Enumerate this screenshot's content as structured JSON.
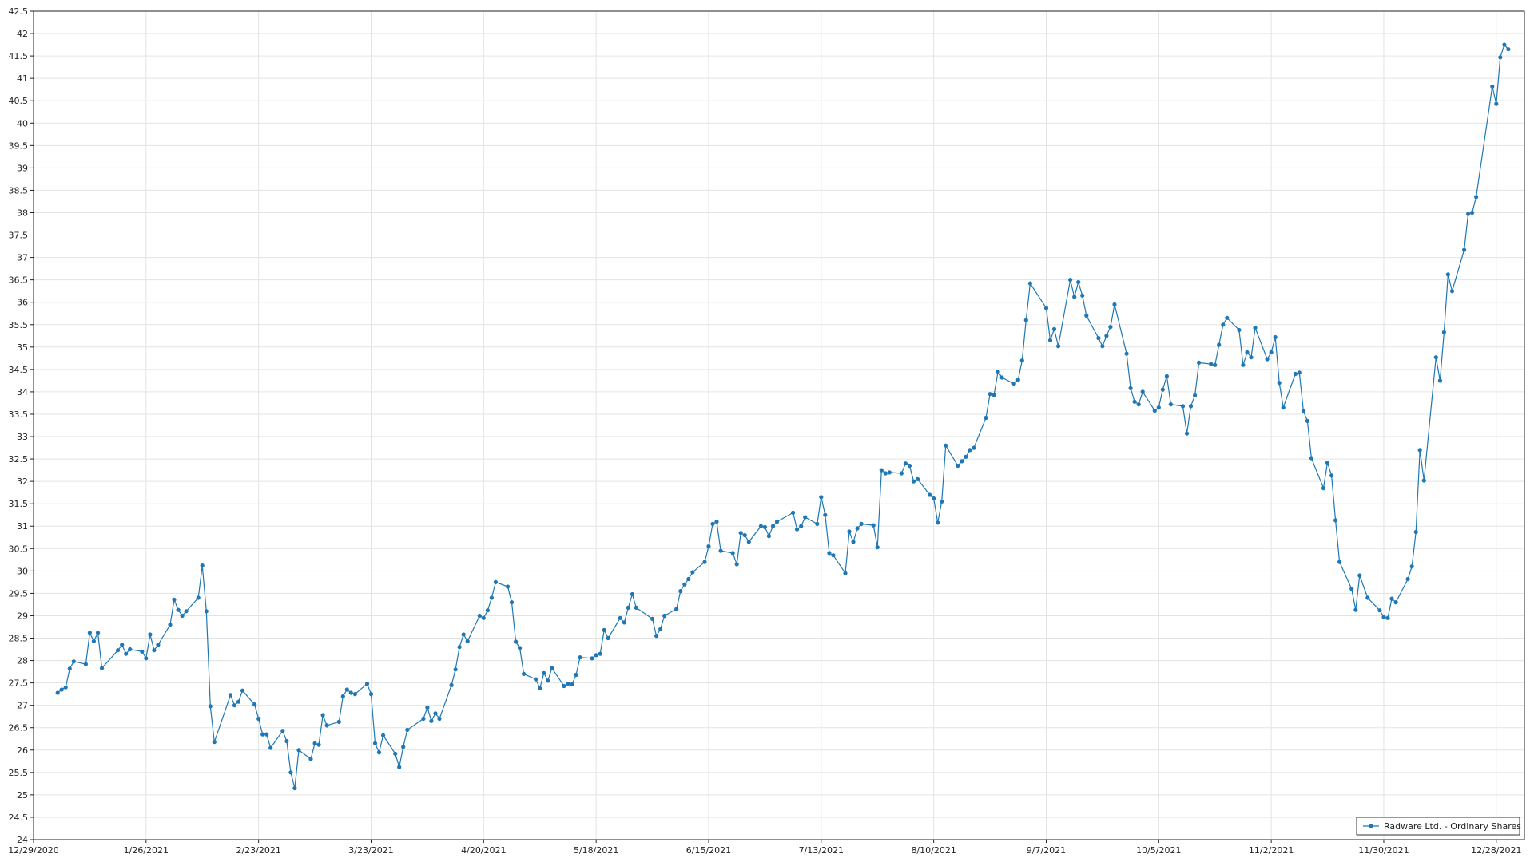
{
  "chart_data": {
    "type": "line",
    "title": "",
    "xlabel": "",
    "ylabel": "",
    "ylim": [
      24,
      42.5
    ],
    "xlim": [
      "2020-12-29",
      "2022-01-04"
    ],
    "y_ticks": [
      24,
      24.5,
      25,
      25.5,
      26,
      26.5,
      27,
      27.5,
      28,
      28.5,
      29,
      29.5,
      30,
      30.5,
      31,
      31.5,
      32,
      32.5,
      33,
      33.5,
      34,
      34.5,
      35,
      35.5,
      36,
      36.5,
      37,
      37.5,
      38,
      38.5,
      39,
      39.5,
      40,
      40.5,
      41,
      41.5,
      42,
      42.5
    ],
    "x_ticks": [
      {
        "date": "2020-12-29",
        "label": "12/29/2020"
      },
      {
        "date": "2021-01-26",
        "label": "1/26/2021"
      },
      {
        "date": "2021-02-23",
        "label": "2/23/2021"
      },
      {
        "date": "2021-03-23",
        "label": "3/23/2021"
      },
      {
        "date": "2021-04-20",
        "label": "4/20/2021"
      },
      {
        "date": "2021-05-18",
        "label": "5/18/2021"
      },
      {
        "date": "2021-06-15",
        "label": "6/15/2021"
      },
      {
        "date": "2021-07-13",
        "label": "7/13/2021"
      },
      {
        "date": "2021-08-10",
        "label": "8/10/2021"
      },
      {
        "date": "2021-09-07",
        "label": "9/7/2021"
      },
      {
        "date": "2021-10-05",
        "label": "10/5/2021"
      },
      {
        "date": "2021-11-02",
        "label": "11/2/2021"
      },
      {
        "date": "2021-11-30",
        "label": "11/30/2021"
      },
      {
        "date": "2021-12-28",
        "label": "12/28/2021"
      }
    ],
    "grid": true,
    "legend": "bottom-right",
    "series": [
      {
        "name": "Radware Ltd. - Ordinary Shares",
        "color": "#1f77b4",
        "points": [
          [
            "2021-01-04",
            27.28
          ],
          [
            "2021-01-05",
            27.35
          ],
          [
            "2021-01-06",
            27.4
          ],
          [
            "2021-01-07",
            27.82
          ],
          [
            "2021-01-08",
            27.98
          ],
          [
            "2021-01-11",
            27.92
          ],
          [
            "2021-01-12",
            28.62
          ],
          [
            "2021-01-13",
            28.43
          ],
          [
            "2021-01-14",
            28.62
          ],
          [
            "2021-01-15",
            27.83
          ],
          [
            "2021-01-19",
            28.23
          ],
          [
            "2021-01-20",
            28.35
          ],
          [
            "2021-01-21",
            28.15
          ],
          [
            "2021-01-22",
            28.25
          ],
          [
            "2021-01-25",
            28.2
          ],
          [
            "2021-01-26",
            28.05
          ],
          [
            "2021-01-27",
            28.58
          ],
          [
            "2021-01-28",
            28.23
          ],
          [
            "2021-01-29",
            28.35
          ],
          [
            "2021-02-01",
            28.8
          ],
          [
            "2021-02-02",
            29.36
          ],
          [
            "2021-02-03",
            29.13
          ],
          [
            "2021-02-04",
            29.0
          ],
          [
            "2021-02-05",
            29.1
          ],
          [
            "2021-02-08",
            29.4
          ],
          [
            "2021-02-09",
            30.12
          ],
          [
            "2021-02-10",
            29.1
          ],
          [
            "2021-02-11",
            26.98
          ],
          [
            "2021-02-12",
            26.18
          ],
          [
            "2021-02-16",
            27.23
          ],
          [
            "2021-02-17",
            27.0
          ],
          [
            "2021-02-18",
            27.08
          ],
          [
            "2021-02-19",
            27.33
          ],
          [
            "2021-02-22",
            27.02
          ],
          [
            "2021-02-23",
            26.7
          ],
          [
            "2021-02-24",
            26.35
          ],
          [
            "2021-02-25",
            26.35
          ],
          [
            "2021-02-26",
            26.05
          ],
          [
            "2021-03-01",
            26.43
          ],
          [
            "2021-03-02",
            26.2
          ],
          [
            "2021-03-03",
            25.5
          ],
          [
            "2021-03-04",
            25.15
          ],
          [
            "2021-03-05",
            26.0
          ],
          [
            "2021-03-08",
            25.8
          ],
          [
            "2021-03-09",
            26.15
          ],
          [
            "2021-03-10",
            26.12
          ],
          [
            "2021-03-11",
            26.78
          ],
          [
            "2021-03-12",
            26.55
          ],
          [
            "2021-03-15",
            26.63
          ],
          [
            "2021-03-16",
            27.2
          ],
          [
            "2021-03-17",
            27.35
          ],
          [
            "2021-03-18",
            27.28
          ],
          [
            "2021-03-19",
            27.25
          ],
          [
            "2021-03-22",
            27.48
          ],
          [
            "2021-03-23",
            27.25
          ],
          [
            "2021-03-24",
            26.15
          ],
          [
            "2021-03-25",
            25.95
          ],
          [
            "2021-03-26",
            26.33
          ],
          [
            "2021-03-29",
            25.92
          ],
          [
            "2021-03-30",
            25.62
          ],
          [
            "2021-03-31",
            26.07
          ],
          [
            "2021-04-01",
            26.45
          ],
          [
            "2021-04-05",
            26.7
          ],
          [
            "2021-04-06",
            26.95
          ],
          [
            "2021-04-07",
            26.65
          ],
          [
            "2021-04-08",
            26.82
          ],
          [
            "2021-04-09",
            26.7
          ],
          [
            "2021-04-12",
            27.45
          ],
          [
            "2021-04-13",
            27.8
          ],
          [
            "2021-04-14",
            28.3
          ],
          [
            "2021-04-15",
            28.58
          ],
          [
            "2021-04-16",
            28.43
          ],
          [
            "2021-04-19",
            29.0
          ],
          [
            "2021-04-20",
            28.95
          ],
          [
            "2021-04-21",
            29.12
          ],
          [
            "2021-04-22",
            29.4
          ],
          [
            "2021-04-23",
            29.75
          ],
          [
            "2021-04-26",
            29.65
          ],
          [
            "2021-04-27",
            29.3
          ],
          [
            "2021-04-28",
            28.42
          ],
          [
            "2021-04-29",
            28.28
          ],
          [
            "2021-04-30",
            27.7
          ],
          [
            "2021-05-03",
            27.58
          ],
          [
            "2021-05-04",
            27.38
          ],
          [
            "2021-05-05",
            27.72
          ],
          [
            "2021-05-06",
            27.55
          ],
          [
            "2021-05-07",
            27.83
          ],
          [
            "2021-05-10",
            27.43
          ],
          [
            "2021-05-11",
            27.48
          ],
          [
            "2021-05-12",
            27.47
          ],
          [
            "2021-05-13",
            27.68
          ],
          [
            "2021-05-14",
            28.07
          ],
          [
            "2021-05-17",
            28.05
          ],
          [
            "2021-05-18",
            28.12
          ],
          [
            "2021-05-19",
            28.15
          ],
          [
            "2021-05-20",
            28.68
          ],
          [
            "2021-05-21",
            28.5
          ],
          [
            "2021-05-24",
            28.95
          ],
          [
            "2021-05-25",
            28.85
          ],
          [
            "2021-05-26",
            29.18
          ],
          [
            "2021-05-27",
            29.48
          ],
          [
            "2021-05-28",
            29.18
          ],
          [
            "2021-06-01",
            28.93
          ],
          [
            "2021-06-02",
            28.55
          ],
          [
            "2021-06-03",
            28.7
          ],
          [
            "2021-06-04",
            29.0
          ],
          [
            "2021-06-07",
            29.15
          ],
          [
            "2021-06-08",
            29.55
          ],
          [
            "2021-06-09",
            29.7
          ],
          [
            "2021-06-10",
            29.82
          ],
          [
            "2021-06-11",
            29.97
          ],
          [
            "2021-06-14",
            30.2
          ],
          [
            "2021-06-15",
            30.55
          ],
          [
            "2021-06-16",
            31.05
          ],
          [
            "2021-06-17",
            31.1
          ],
          [
            "2021-06-18",
            30.45
          ],
          [
            "2021-06-21",
            30.4
          ],
          [
            "2021-06-22",
            30.15
          ],
          [
            "2021-06-23",
            30.85
          ],
          [
            "2021-06-24",
            30.8
          ],
          [
            "2021-06-25",
            30.65
          ],
          [
            "2021-06-28",
            31.0
          ],
          [
            "2021-06-29",
            30.98
          ],
          [
            "2021-06-30",
            30.78
          ],
          [
            "2021-07-01",
            31.0
          ],
          [
            "2021-07-02",
            31.1
          ],
          [
            "2021-07-06",
            31.3
          ],
          [
            "2021-07-07",
            30.93
          ],
          [
            "2021-07-08",
            31.0
          ],
          [
            "2021-07-09",
            31.2
          ],
          [
            "2021-07-12",
            31.05
          ],
          [
            "2021-07-13",
            31.65
          ],
          [
            "2021-07-14",
            31.25
          ],
          [
            "2021-07-15",
            30.4
          ],
          [
            "2021-07-16",
            30.35
          ],
          [
            "2021-07-19",
            29.95
          ],
          [
            "2021-07-20",
            30.88
          ],
          [
            "2021-07-21",
            30.65
          ],
          [
            "2021-07-22",
            30.95
          ],
          [
            "2021-07-23",
            31.05
          ],
          [
            "2021-07-26",
            31.02
          ],
          [
            "2021-07-27",
            30.53
          ],
          [
            "2021-07-28",
            32.25
          ],
          [
            "2021-07-29",
            32.18
          ],
          [
            "2021-07-30",
            32.2
          ],
          [
            "2021-08-02",
            32.18
          ],
          [
            "2021-08-03",
            32.4
          ],
          [
            "2021-08-04",
            32.35
          ],
          [
            "2021-08-05",
            32.0
          ],
          [
            "2021-08-06",
            32.05
          ],
          [
            "2021-08-09",
            31.7
          ],
          [
            "2021-08-10",
            31.62
          ],
          [
            "2021-08-11",
            31.08
          ],
          [
            "2021-08-12",
            31.55
          ],
          [
            "2021-08-13",
            32.8
          ],
          [
            "2021-08-16",
            32.35
          ],
          [
            "2021-08-17",
            32.45
          ],
          [
            "2021-08-18",
            32.55
          ],
          [
            "2021-08-19",
            32.7
          ],
          [
            "2021-08-20",
            32.75
          ],
          [
            "2021-08-23",
            33.42
          ],
          [
            "2021-08-24",
            33.95
          ],
          [
            "2021-08-25",
            33.93
          ],
          [
            "2021-08-26",
            34.45
          ],
          [
            "2021-08-27",
            34.32
          ],
          [
            "2021-08-30",
            34.18
          ],
          [
            "2021-08-31",
            34.27
          ],
          [
            "2021-09-01",
            34.7
          ],
          [
            "2021-09-02",
            35.6
          ],
          [
            "2021-09-03",
            36.42
          ],
          [
            "2021-09-07",
            35.87
          ],
          [
            "2021-09-08",
            35.15
          ],
          [
            "2021-09-09",
            35.4
          ],
          [
            "2021-09-10",
            35.02
          ],
          [
            "2021-09-13",
            36.5
          ],
          [
            "2021-09-14",
            36.12
          ],
          [
            "2021-09-15",
            36.45
          ],
          [
            "2021-09-16",
            36.15
          ],
          [
            "2021-09-17",
            35.7
          ],
          [
            "2021-09-20",
            35.2
          ],
          [
            "2021-09-21",
            35.02
          ],
          [
            "2021-09-22",
            35.25
          ],
          [
            "2021-09-23",
            35.45
          ],
          [
            "2021-09-24",
            35.95
          ],
          [
            "2021-09-27",
            34.85
          ],
          [
            "2021-09-28",
            34.08
          ],
          [
            "2021-09-29",
            33.78
          ],
          [
            "2021-09-30",
            33.72
          ],
          [
            "2021-10-01",
            34.0
          ],
          [
            "2021-10-04",
            33.58
          ],
          [
            "2021-10-05",
            33.65
          ],
          [
            "2021-10-06",
            34.05
          ],
          [
            "2021-10-07",
            34.35
          ],
          [
            "2021-10-08",
            33.72
          ],
          [
            "2021-10-11",
            33.68
          ],
          [
            "2021-10-12",
            33.07
          ],
          [
            "2021-10-13",
            33.68
          ],
          [
            "2021-10-14",
            33.92
          ],
          [
            "2021-10-15",
            34.65
          ],
          [
            "2021-10-18",
            34.62
          ],
          [
            "2021-10-19",
            34.6
          ],
          [
            "2021-10-20",
            35.05
          ],
          [
            "2021-10-21",
            35.5
          ],
          [
            "2021-10-22",
            35.65
          ],
          [
            "2021-10-25",
            35.38
          ],
          [
            "2021-10-26",
            34.6
          ],
          [
            "2021-10-27",
            34.88
          ],
          [
            "2021-10-28",
            34.77
          ],
          [
            "2021-10-29",
            35.43
          ],
          [
            "2021-11-01",
            34.73
          ],
          [
            "2021-11-02",
            34.88
          ],
          [
            "2021-11-03",
            35.22
          ],
          [
            "2021-11-04",
            34.2
          ],
          [
            "2021-11-05",
            33.65
          ],
          [
            "2021-11-08",
            34.4
          ],
          [
            "2021-11-09",
            34.43
          ],
          [
            "2021-11-10",
            33.57
          ],
          [
            "2021-11-11",
            33.35
          ],
          [
            "2021-11-12",
            32.52
          ],
          [
            "2021-11-15",
            31.85
          ],
          [
            "2021-11-16",
            32.42
          ],
          [
            "2021-11-17",
            32.13
          ],
          [
            "2021-11-18",
            31.13
          ],
          [
            "2021-11-19",
            30.2
          ],
          [
            "2021-11-22",
            29.6
          ],
          [
            "2021-11-23",
            29.13
          ],
          [
            "2021-11-24",
            29.9
          ],
          [
            "2021-11-26",
            29.4
          ],
          [
            "2021-11-29",
            29.12
          ],
          [
            "2021-11-30",
            28.97
          ],
          [
            "2021-12-01",
            28.95
          ],
          [
            "2021-12-02",
            29.38
          ],
          [
            "2021-12-03",
            29.3
          ],
          [
            "2021-12-06",
            29.82
          ],
          [
            "2021-12-07",
            30.1
          ],
          [
            "2021-12-08",
            30.87
          ],
          [
            "2021-12-09",
            32.7
          ],
          [
            "2021-12-10",
            32.02
          ],
          [
            "2021-12-13",
            34.77
          ],
          [
            "2021-12-14",
            34.25
          ],
          [
            "2021-12-15",
            35.33
          ],
          [
            "2021-12-16",
            36.62
          ],
          [
            "2021-12-17",
            36.25
          ],
          [
            "2021-12-20",
            37.17
          ],
          [
            "2021-12-21",
            37.97
          ],
          [
            "2021-12-22",
            38.0
          ],
          [
            "2021-12-23",
            38.35
          ],
          [
            "2021-12-27",
            40.82
          ],
          [
            "2021-12-28",
            40.43
          ],
          [
            "2021-12-29",
            41.47
          ],
          [
            "2021-12-30",
            41.75
          ],
          [
            "2021-12-31",
            41.65
          ]
        ]
      }
    ]
  }
}
